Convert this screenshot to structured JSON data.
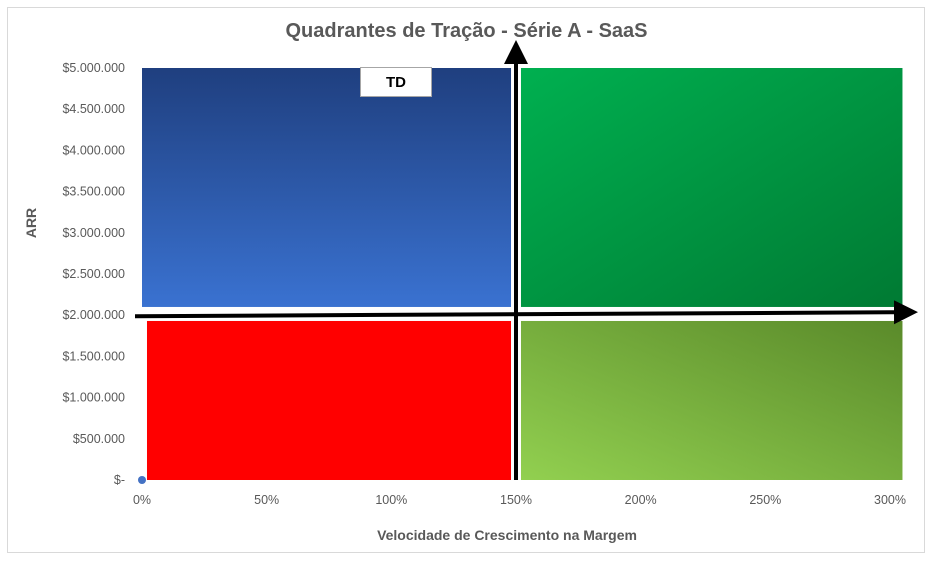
{
  "chart_data": {
    "type": "scatter",
    "title": "Quadrantes de Tração - Série A - SaaS",
    "xlabel": "Velocidade de Crescimento na Margem",
    "ylabel": "ARR",
    "xlim": [
      0,
      3.0
    ],
    "ylim": [
      0,
      5000000
    ],
    "x_ticks": [
      0,
      0.5,
      1.0,
      1.5,
      2.0,
      2.5,
      3.0
    ],
    "x_tick_labels": [
      "0%",
      "50%",
      "100%",
      "150%",
      "200%",
      "250%",
      "300%"
    ],
    "y_ticks": [
      0,
      500000,
      1000000,
      1500000,
      2000000,
      2500000,
      3000000,
      3500000,
      4000000,
      4500000,
      5000000
    ],
    "y_tick_labels": [
      "$-",
      "$500.000",
      "$1.000.000",
      "$1.500.000",
      "$2.000.000",
      "$2.500.000",
      "$3.000.000",
      "$3.500.000",
      "$4.000.000",
      "$4.500.000",
      "$5.000.000"
    ],
    "grid": false,
    "points": [
      {
        "x": 0,
        "y": 0,
        "color": "#4472c4"
      }
    ],
    "quadrant_dividers": {
      "x": 1.5,
      "y": 2000000
    },
    "quadrants": [
      {
        "id": "top-left",
        "x0": 0.0,
        "x1": 1.48,
        "y0": 2100000,
        "y1": 5000000,
        "color_top": "#1f3f7f",
        "color_bottom": "#3a72d1"
      },
      {
        "id": "top-right",
        "x0": 1.52,
        "x1": 3.05,
        "y0": 2100000,
        "y1": 5000000,
        "color_top": "#00b050",
        "color_bottom": "#007a33"
      },
      {
        "id": "bottom-left",
        "x0": 0.02,
        "x1": 1.48,
        "y0": 0,
        "y1": 1930000,
        "color_top": "#ff0000",
        "color_bottom": "#ff0000"
      },
      {
        "id": "bottom-right",
        "x0": 1.52,
        "x1": 3.05,
        "y0": 0,
        "y1": 1930000,
        "color_top": "#92d050",
        "color_bottom": "#5a8a2a"
      }
    ],
    "annotations": [
      {
        "text": "TD"
      }
    ]
  }
}
